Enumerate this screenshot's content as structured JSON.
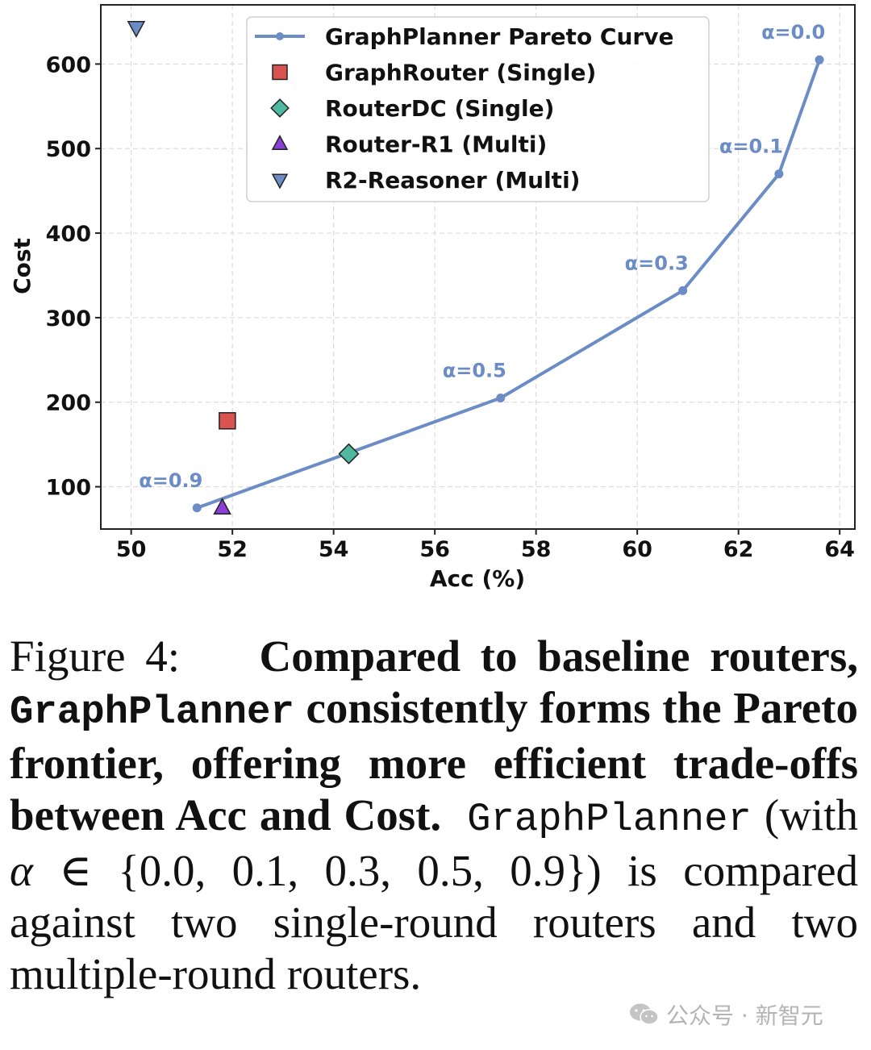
{
  "chart_data": {
    "type": "scatter",
    "xlabel": "Acc (%)",
    "ylabel": "Cost",
    "xlim": [
      49.4,
      64.3
    ],
    "ylim": [
      50,
      670
    ],
    "xticks": [
      50,
      52,
      54,
      56,
      58,
      60,
      62,
      64
    ],
    "yticks": [
      100,
      200,
      300,
      400,
      500,
      600
    ],
    "grid": true,
    "legend_position": "top-center",
    "series": [
      {
        "name": "GraphPlanner Pareto Curve",
        "kind": "line",
        "color": "#6b8cc4",
        "points": [
          {
            "x": 51.3,
            "y": 75,
            "label": "α=0.9"
          },
          {
            "x": 57.3,
            "y": 205,
            "label": "α=0.5"
          },
          {
            "x": 60.9,
            "y": 332,
            "label": "α=0.3"
          },
          {
            "x": 62.8,
            "y": 470,
            "label": "α=0.1"
          },
          {
            "x": 63.6,
            "y": 605,
            "label": "α=0.0"
          }
        ]
      },
      {
        "name": "GraphRouter (Single)",
        "kind": "marker",
        "marker": "square",
        "color": "#d9534f",
        "points": [
          {
            "x": 51.9,
            "y": 178
          }
        ]
      },
      {
        "name": "RouterDC (Single)",
        "kind": "marker",
        "marker": "diamond",
        "color": "#4fb8a0",
        "points": [
          {
            "x": 54.3,
            "y": 139
          }
        ]
      },
      {
        "name": "Router-R1 (Multi)",
        "kind": "marker",
        "marker": "triangle-up",
        "color": "#8a3fd6",
        "points": [
          {
            "x": 51.8,
            "y": 75
          }
        ]
      },
      {
        "name": "R2-Reasoner (Multi)",
        "kind": "marker",
        "marker": "triangle-down",
        "color": "#6b8cc4",
        "points": [
          {
            "x": 50.1,
            "y": 643
          }
        ]
      }
    ]
  },
  "caption": {
    "figure_label": "Figure 4:",
    "bold_1": "Compared to baseline routers,",
    "bold_mono": "GraphPlanner",
    "bold_2": "consistently forms the Pareto frontier, offering more efficient trade-offs between Acc and Cost.",
    "mono": "GraphPlanner",
    "text_1": "(with",
    "math_var": "α",
    "math_rest": "∈ {0.0, 0.1, 0.3, 0.5, 0.9})",
    "text_2": "is compared against two single-round routers and two multiple-round routers."
  },
  "watermark": {
    "icon": "wechat-icon",
    "text": "公众号 · 新智元"
  }
}
